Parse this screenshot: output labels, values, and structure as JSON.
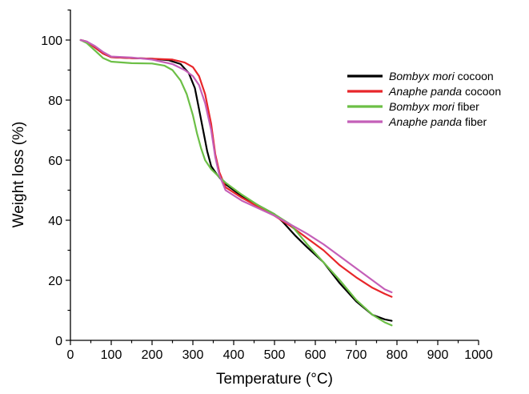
{
  "chart_data": {
    "type": "line",
    "title": "",
    "xlabel": "Temperature (°C)",
    "ylabel": "Weight loss (%)",
    "xlim": [
      0,
      1000
    ],
    "ylim": [
      0,
      110
    ],
    "x_ticks": [
      0,
      100,
      200,
      300,
      400,
      500,
      600,
      700,
      800,
      900,
      1000
    ],
    "y_ticks": [
      0,
      20,
      40,
      60,
      80,
      100
    ],
    "grid": false,
    "legend_position": "top-right",
    "series": [
      {
        "name_italic": "Bombyx mori",
        "name_suffix": " cocoon",
        "color": "#000000",
        "points": [
          [
            25,
            100
          ],
          [
            40,
            99.5
          ],
          [
            60,
            97.5
          ],
          [
            80,
            95.5
          ],
          [
            100,
            94.3
          ],
          [
            150,
            94
          ],
          [
            200,
            93.8
          ],
          [
            240,
            93.3
          ],
          [
            270,
            92
          ],
          [
            290,
            89
          ],
          [
            305,
            84
          ],
          [
            315,
            77
          ],
          [
            325,
            70
          ],
          [
            335,
            63
          ],
          [
            345,
            58
          ],
          [
            360,
            55
          ],
          [
            380,
            52
          ],
          [
            420,
            48
          ],
          [
            460,
            45
          ],
          [
            500,
            42
          ],
          [
            520,
            39.5
          ],
          [
            550,
            35
          ],
          [
            580,
            31
          ],
          [
            620,
            26
          ],
          [
            660,
            19
          ],
          [
            700,
            13
          ],
          [
            740,
            8.5
          ],
          [
            770,
            7
          ],
          [
            787,
            6.5
          ]
        ]
      },
      {
        "name_italic": "Anaphe panda",
        "name_suffix": " cocoon",
        "color": "#e8262a",
        "points": [
          [
            25,
            100
          ],
          [
            40,
            99.5
          ],
          [
            60,
            97.5
          ],
          [
            80,
            95.5
          ],
          [
            100,
            94.3
          ],
          [
            150,
            94
          ],
          [
            200,
            93.8
          ],
          [
            250,
            93.5
          ],
          [
            280,
            92.5
          ],
          [
            300,
            91
          ],
          [
            315,
            88
          ],
          [
            330,
            82
          ],
          [
            345,
            72
          ],
          [
            355,
            62
          ],
          [
            365,
            56
          ],
          [
            380,
            51
          ],
          [
            420,
            47.5
          ],
          [
            460,
            44.5
          ],
          [
            500,
            41.5
          ],
          [
            540,
            38
          ],
          [
            580,
            34
          ],
          [
            620,
            30
          ],
          [
            660,
            25
          ],
          [
            700,
            21
          ],
          [
            740,
            17.5
          ],
          [
            770,
            15.5
          ],
          [
            787,
            14.5
          ]
        ]
      },
      {
        "name_italic": "Bombyx mori",
        "name_suffix": " fiber",
        "color": "#6cbf46",
        "points": [
          [
            25,
            100
          ],
          [
            40,
            99
          ],
          [
            60,
            96.5
          ],
          [
            80,
            94
          ],
          [
            100,
            92.8
          ],
          [
            150,
            92.3
          ],
          [
            200,
            92.2
          ],
          [
            230,
            91.5
          ],
          [
            250,
            90
          ],
          [
            270,
            86.5
          ],
          [
            285,
            82
          ],
          [
            300,
            75
          ],
          [
            310,
            69
          ],
          [
            320,
            64
          ],
          [
            330,
            60
          ],
          [
            345,
            57
          ],
          [
            360,
            55
          ],
          [
            380,
            52.5
          ],
          [
            420,
            48.5
          ],
          [
            460,
            45
          ],
          [
            500,
            42
          ],
          [
            540,
            38.5
          ],
          [
            580,
            32
          ],
          [
            620,
            26
          ],
          [
            660,
            20
          ],
          [
            700,
            13.5
          ],
          [
            740,
            8.5
          ],
          [
            770,
            6
          ],
          [
            787,
            5
          ]
        ]
      },
      {
        "name_italic": "Anaphe panda",
        "name_suffix": " fiber",
        "color": "#c45fb8",
        "points": [
          [
            25,
            100
          ],
          [
            40,
            99.5
          ],
          [
            60,
            98
          ],
          [
            80,
            96
          ],
          [
            100,
            94.5
          ],
          [
            150,
            94.2
          ],
          [
            200,
            93.5
          ],
          [
            250,
            92
          ],
          [
            280,
            90
          ],
          [
            300,
            88
          ],
          [
            315,
            85
          ],
          [
            330,
            79
          ],
          [
            345,
            70
          ],
          [
            355,
            61
          ],
          [
            365,
            55
          ],
          [
            380,
            50
          ],
          [
            420,
            46.5
          ],
          [
            460,
            44
          ],
          [
            500,
            41.5
          ],
          [
            540,
            38.5
          ],
          [
            580,
            35.5
          ],
          [
            620,
            32
          ],
          [
            660,
            28
          ],
          [
            700,
            24
          ],
          [
            740,
            20
          ],
          [
            770,
            17
          ],
          [
            787,
            16
          ]
        ]
      }
    ]
  }
}
